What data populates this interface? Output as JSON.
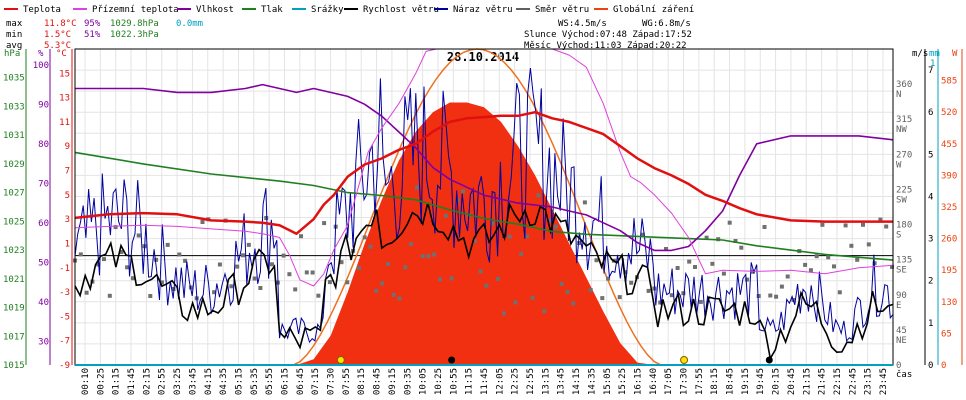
{
  "legend": [
    {
      "label": "Teplota",
      "color": "#e01010"
    },
    {
      "label": "Přízemní teplota",
      "color": "#e040e0"
    },
    {
      "label": "Vlhkost",
      "color": "#8000a0"
    },
    {
      "label": "Tlak",
      "color": "#208020"
    },
    {
      "label": "Srážky",
      "color": "#00a0c0"
    },
    {
      "label": "Rychlost větru",
      "color": "#000000"
    },
    {
      "label": "Náraz větru",
      "color": "#0000a0"
    },
    {
      "label": "Směr větru",
      "color": "#606060"
    },
    {
      "label": "Globální záření",
      "color": "#f04010"
    }
  ],
  "stats": {
    "max_label": "max",
    "min_label": "min",
    "avg_label": "avg",
    "max_temp": "11.8°C",
    "max_hum": "95%",
    "max_press": "1029.8hPa",
    "max_rain": "0.0mm",
    "min_temp": "1.5°C",
    "min_hum": "51%",
    "min_press": "1022.3hPa",
    "avg_temp": "5.3°C",
    "ws": "WS:4.5m/s",
    "wg": "WG:6.8m/s",
    "sun_line": "Slunce Východ:07:48  Západ:17:52",
    "moon_line": "Měsíc  Východ:11:03  Západ:20:22"
  },
  "axis_units": {
    "hpa": "hPa",
    "pct": "%",
    "degc": "°C",
    "ms": "m/s",
    "mm": "mm",
    "w": "W",
    "time": "čas"
  },
  "chart_data": {
    "type": "line",
    "title": "28.10.2014",
    "x_ticks": [
      "00:10",
      "00:25",
      "01:15",
      "01:45",
      "02:15",
      "02:55",
      "03:25",
      "03:45",
      "04:15",
      "04:35",
      "05:15",
      "05:35",
      "05:55",
      "06:15",
      "06:45",
      "07:15",
      "07:30",
      "07:55",
      "08:15",
      "08:45",
      "09:15",
      "09:35",
      "10:05",
      "10:25",
      "10:55",
      "11:15",
      "11:45",
      "12:05",
      "12:25",
      "12:55",
      "13:15",
      "13:45",
      "14:15",
      "14:35",
      "15:05",
      "15:25",
      "16:15",
      "16:40",
      "17:05",
      "17:30",
      "17:55",
      "18:15",
      "18:45",
      "19:15",
      "19:45",
      "20:15",
      "20:45",
      "21:15",
      "21:45",
      "22:15",
      "22:45",
      "23:15",
      "23:45"
    ],
    "axes": {
      "hpa_ticks": [
        "1035",
        "1033",
        "1031",
        "1029",
        "1027",
        "1025",
        "1023",
        "1021",
        "1019",
        "1017",
        "1015"
      ],
      "pct_ticks": [
        "100",
        "90",
        "80",
        "70",
        "60",
        "50",
        "40",
        "30"
      ],
      "temp_ticks": [
        "15",
        "13",
        "11",
        "9",
        "7",
        "5",
        "3",
        "1",
        "-1",
        "-3",
        "-5",
        "-7",
        "-9"
      ],
      "dir_ticks": [
        "360 N",
        "315 NW",
        "270 W",
        "225 SW",
        "180 S",
        "135 SE",
        "90 E",
        "45 NE",
        "0"
      ],
      "ms_ticks": [
        "7",
        "6",
        "5",
        "4",
        "3",
        "2",
        "1",
        "0"
      ],
      "mm_ticks": [
        "1"
      ],
      "w_ticks": [
        "585",
        "520",
        "455",
        "390",
        "325",
        "260",
        "195",
        "130",
        "65",
        "0"
      ],
      "temp_range": [
        -9,
        17
      ],
      "hum_range": [
        24,
        104
      ],
      "press_range": [
        1015,
        1037
      ],
      "wind_range": [
        0,
        7.5
      ],
      "rad_range": [
        0,
        650
      ],
      "dir_range": [
        0,
        405
      ]
    },
    "series": [
      {
        "name": "Teplota",
        "color": "#e01010",
        "hours": [
          0,
          1,
          2,
          3,
          4,
          5,
          5.5,
          6,
          6.5,
          7,
          7.3,
          7.6,
          8,
          8.5,
          9,
          9.5,
          10,
          10.5,
          11,
          11.5,
          12,
          12.5,
          13,
          13.5,
          14,
          14.5,
          15,
          15.5,
          16,
          16.5,
          17,
          17.5,
          18,
          18.5,
          19,
          19.5,
          20,
          21,
          22,
          23,
          24
        ],
        "values": [
          3.1,
          3.4,
          3.5,
          3.4,
          2.9,
          2.8,
          2.7,
          2.5,
          1.8,
          3.0,
          4.2,
          5.0,
          6.5,
          7.5,
          8.0,
          8.7,
          9.2,
          10.2,
          11.0,
          11.3,
          11.4,
          11.5,
          11.5,
          11.8,
          11.3,
          11.0,
          10.5,
          10.0,
          9.0,
          8.0,
          7.2,
          6.6,
          5.9,
          5.0,
          4.5,
          3.9,
          3.4,
          2.9,
          2.8,
          2.8,
          2.8
        ]
      },
      {
        "name": "Přízemní teplota",
        "color": "#e040e0",
        "hours": [
          0,
          1,
          2,
          3,
          4,
          5,
          5.5,
          6,
          6.3,
          6.6,
          7,
          7.3,
          7.6,
          8,
          8.3,
          8.6,
          9,
          9.5,
          10,
          10.3,
          10.6,
          11,
          11.5,
          12,
          13,
          14,
          14.5,
          15,
          15.5,
          16,
          16.3,
          16.6,
          17,
          17.5,
          18,
          18.5,
          19,
          20,
          21,
          22,
          23,
          24
        ],
        "values": [
          2.3,
          2.4,
          2.5,
          2.4,
          2.2,
          2.0,
          1.8,
          1.5,
          0.0,
          -2.0,
          -2.5,
          -1.5,
          0.5,
          2.5,
          5.5,
          8.5,
          10.5,
          12.5,
          15.0,
          16.8,
          17.5,
          17.2,
          17.3,
          17.2,
          17.0,
          17.0,
          16.5,
          15.5,
          12.5,
          8.5,
          6.5,
          6.0,
          5.0,
          3.5,
          1.5,
          -1.5,
          -1.2,
          -1.3,
          -1.2,
          -1.5,
          -1.0,
          -0.8
        ]
      },
      {
        "name": "Vlhkost",
        "color": "#8000a0",
        "hours": [
          0,
          1,
          2,
          3,
          4,
          5,
          5.5,
          6,
          6.5,
          7,
          7.5,
          8,
          8.5,
          9,
          9.5,
          10,
          10.5,
          11,
          11.5,
          12,
          13,
          14,
          14.5,
          15,
          15.5,
          16,
          16.5,
          17,
          17.5,
          18,
          18.5,
          19,
          19.5,
          20,
          21,
          22,
          23,
          24
        ],
        "values": [
          94,
          94,
          94,
          93,
          93,
          94,
          95,
          94,
          93,
          94,
          93,
          92,
          90,
          87,
          83,
          79,
          74,
          71,
          69,
          67,
          65,
          64,
          63,
          62,
          60,
          58,
          55,
          53,
          53,
          54,
          58,
          63,
          72,
          80,
          82,
          82,
          82,
          81
        ]
      },
      {
        "name": "Tlak",
        "color": "#208020",
        "hours": [
          0,
          2,
          4,
          6,
          7,
          8,
          9,
          10,
          11,
          12,
          13,
          14,
          15,
          16,
          17,
          18,
          19,
          20,
          21,
          22,
          23,
          24
        ],
        "values": [
          1029.8,
          1029.0,
          1028.3,
          1027.8,
          1027.5,
          1027.0,
          1026.8,
          1026.5,
          1025.8,
          1025.2,
          1024.8,
          1024.3,
          1024.1,
          1024.0,
          1023.9,
          1023.8,
          1023.7,
          1023.3,
          1023.0,
          1022.7,
          1022.5,
          1022.3
        ]
      },
      {
        "name": "Globální záření",
        "color": "#f04010",
        "hours": [
          6.5,
          7,
          7.5,
          8,
          8.5,
          9,
          9.5,
          10,
          10.5,
          11,
          11.5,
          12,
          12.5,
          13,
          13.5,
          14,
          14.5,
          15,
          15.5,
          16,
          16.5,
          17
        ],
        "values": [
          0,
          12,
          60,
          150,
          250,
          340,
          420,
          480,
          520,
          540,
          540,
          530,
          500,
          450,
          390,
          320,
          250,
          180,
          110,
          45,
          5,
          0
        ]
      }
    ],
    "sun": {
      "rise_hour": 7.8,
      "set_hour": 17.87
    },
    "moon": {
      "rise_hour": 11.05,
      "set_hour": 20.37
    }
  }
}
